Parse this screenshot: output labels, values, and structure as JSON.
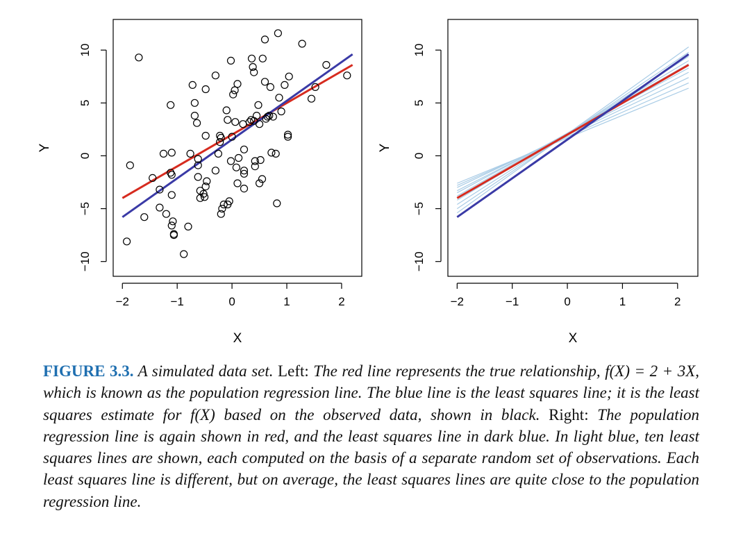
{
  "chart_data": [
    {
      "type": "scatter",
      "panel": "left",
      "xlabel": "X",
      "ylabel": "Y",
      "xlim": [
        -2.0,
        2.2
      ],
      "ylim": [
        -10.5,
        12.0
      ],
      "xticks": [
        -2,
        -1,
        0,
        1,
        2
      ],
      "yticks": [
        -10,
        -5,
        0,
        5,
        10
      ],
      "xtick_labels": [
        "−2",
        "−1",
        "0",
        "1",
        "2"
      ],
      "ytick_labels": [
        "−10",
        "−5",
        "0",
        "5",
        "10"
      ],
      "points": [
        [
          -1.7,
          9.3
        ],
        [
          -1.92,
          -8.1
        ],
        [
          -1.86,
          -0.9
        ],
        [
          -1.6,
          -5.8
        ],
        [
          -1.45,
          -2.1
        ],
        [
          -1.32,
          -3.2
        ],
        [
          -1.32,
          -4.9
        ],
        [
          -1.25,
          0.2
        ],
        [
          -1.2,
          -5.5
        ],
        [
          -1.12,
          4.8
        ],
        [
          -1.12,
          -1.6
        ],
        [
          -1.1,
          0.3
        ],
        [
          -1.1,
          -1.8
        ],
        [
          -1.1,
          -3.7
        ],
        [
          -1.08,
          -6.2
        ],
        [
          -1.1,
          -6.6
        ],
        [
          -1.06,
          -7.4
        ],
        [
          -1.06,
          -7.5
        ],
        [
          -0.88,
          -9.3
        ],
        [
          -0.8,
          -6.7
        ],
        [
          -0.76,
          0.2
        ],
        [
          -0.72,
          6.7
        ],
        [
          -0.68,
          5.0
        ],
        [
          -0.68,
          3.8
        ],
        [
          -0.64,
          3.1
        ],
        [
          -0.62,
          -0.3
        ],
        [
          -0.62,
          -0.9
        ],
        [
          -0.62,
          -2.0
        ],
        [
          -0.58,
          -3.3
        ],
        [
          -0.58,
          -4.0
        ],
        [
          -0.52,
          -3.6
        ],
        [
          -0.5,
          -3.9
        ],
        [
          -0.48,
          -2.9
        ],
        [
          -0.46,
          -2.4
        ],
        [
          -0.48,
          6.3
        ],
        [
          -0.48,
          1.9
        ],
        [
          -0.3,
          7.6
        ],
        [
          -0.3,
          -1.4
        ],
        [
          -0.25,
          0.2
        ],
        [
          -0.22,
          1.3
        ],
        [
          -0.2,
          1.7
        ],
        [
          -0.22,
          1.9
        ],
        [
          -0.2,
          -5.5
        ],
        [
          -0.18,
          -5.0
        ],
        [
          -0.15,
          -4.6
        ],
        [
          -0.08,
          -4.6
        ],
        [
          -0.05,
          -4.3
        ],
        [
          -0.08,
          3.4
        ],
        [
          -0.1,
          4.3
        ],
        [
          -0.02,
          9.0
        ],
        [
          -0.02,
          -0.5
        ],
        [
          0.0,
          1.8
        ],
        [
          0.02,
          5.8
        ],
        [
          0.05,
          6.2
        ],
        [
          0.1,
          6.8
        ],
        [
          0.06,
          3.2
        ],
        [
          0.08,
          -1.1
        ],
        [
          0.1,
          -2.6
        ],
        [
          0.12,
          -0.2
        ],
        [
          0.2,
          3.0
        ],
        [
          0.22,
          0.6
        ],
        [
          0.22,
          -1.4
        ],
        [
          0.22,
          -3.1
        ],
        [
          0.22,
          -1.7
        ],
        [
          0.32,
          3.2
        ],
        [
          0.35,
          3.4
        ],
        [
          0.36,
          9.2
        ],
        [
          0.38,
          8.4
        ],
        [
          0.4,
          7.9
        ],
        [
          0.4,
          3.3
        ],
        [
          0.42,
          -0.5
        ],
        [
          0.42,
          -1.0
        ],
        [
          0.45,
          3.8
        ],
        [
          0.48,
          4.8
        ],
        [
          0.5,
          3.0
        ],
        [
          0.5,
          -2.6
        ],
        [
          0.52,
          -0.4
        ],
        [
          0.55,
          -2.2
        ],
        [
          0.56,
          9.2
        ],
        [
          0.6,
          7.0
        ],
        [
          0.6,
          11.0
        ],
        [
          0.62,
          3.5
        ],
        [
          0.65,
          3.7
        ],
        [
          0.68,
          3.8
        ],
        [
          0.7,
          6.5
        ],
        [
          0.72,
          0.3
        ],
        [
          0.75,
          3.7
        ],
        [
          0.8,
          0.2
        ],
        [
          0.84,
          11.6
        ],
        [
          0.82,
          -4.5
        ],
        [
          0.86,
          5.5
        ],
        [
          0.9,
          4.2
        ],
        [
          0.96,
          6.7
        ],
        [
          1.02,
          2.0
        ],
        [
          1.02,
          1.8
        ],
        [
          1.04,
          7.5
        ],
        [
          1.28,
          10.6
        ],
        [
          1.45,
          5.4
        ],
        [
          1.52,
          6.5
        ],
        [
          1.72,
          8.6
        ],
        [
          2.1,
          7.6
        ]
      ],
      "series": [
        {
          "name": "population regression line",
          "color": "#d62b1f",
          "x": [
            -2.0,
            2.2
          ],
          "y": [
            -4.0,
            8.6
          ]
        },
        {
          "name": "least squares line",
          "color": "#3a3aa6",
          "x": [
            -2.0,
            2.2
          ],
          "y": [
            -5.8,
            9.6
          ]
        }
      ]
    },
    {
      "type": "line",
      "panel": "right",
      "xlabel": "X",
      "ylabel": "Y",
      "xlim": [
        -2.0,
        2.2
      ],
      "ylim": [
        -10.5,
        12.0
      ],
      "xticks": [
        -2,
        -1,
        0,
        1,
        2
      ],
      "yticks": [
        -10,
        -5,
        0,
        5,
        10
      ],
      "xtick_labels": [
        "−2",
        "−1",
        "0",
        "1",
        "2"
      ],
      "ytick_labels": [
        "−10",
        "−5",
        "0",
        "5",
        "10"
      ],
      "series": [
        {
          "name": "least squares line 1",
          "color": "#a9cce6",
          "x": [
            -2.0,
            2.2
          ],
          "y": [
            -2.6,
            6.4
          ]
        },
        {
          "name": "least squares line 2",
          "color": "#a9cce6",
          "x": [
            -2.0,
            2.2
          ],
          "y": [
            -2.8,
            6.9
          ]
        },
        {
          "name": "least squares line 3",
          "color": "#a9cce6",
          "x": [
            -2.0,
            2.2
          ],
          "y": [
            -3.0,
            7.4
          ]
        },
        {
          "name": "least squares line 4",
          "color": "#a9cce6",
          "x": [
            -2.0,
            2.2
          ],
          "y": [
            -3.3,
            7.9
          ]
        },
        {
          "name": "least squares line 5",
          "color": "#a9cce6",
          "x": [
            -2.0,
            2.2
          ],
          "y": [
            -3.5,
            8.3
          ]
        },
        {
          "name": "least squares line 6",
          "color": "#a9cce6",
          "x": [
            -2.0,
            2.2
          ],
          "y": [
            -3.8,
            8.7
          ]
        },
        {
          "name": "least squares line 7",
          "color": "#a9cce6",
          "x": [
            -2.0,
            2.2
          ],
          "y": [
            -4.2,
            9.0
          ]
        },
        {
          "name": "least squares line 8",
          "color": "#a9cce6",
          "x": [
            -2.0,
            2.2
          ],
          "y": [
            -4.6,
            9.4
          ]
        },
        {
          "name": "least squares line 9",
          "color": "#a9cce6",
          "x": [
            -2.0,
            2.2
          ],
          "y": [
            -5.0,
            9.8
          ]
        },
        {
          "name": "least squares line 10",
          "color": "#a9cce6",
          "x": [
            -2.0,
            2.2
          ],
          "y": [
            -5.4,
            10.3
          ]
        },
        {
          "name": "population regression line",
          "color": "#d62b1f",
          "x": [
            -2.0,
            2.2
          ],
          "y": [
            -4.0,
            8.6
          ]
        },
        {
          "name": "least squares line",
          "color": "#3a3aa6",
          "x": [
            -2.0,
            2.2
          ],
          "y": [
            -5.8,
            9.6
          ]
        }
      ]
    }
  ],
  "caption": {
    "figure_label": "FIGURE 3.3.",
    "seg1": " A simulated data set.",
    "seg2": " Left:",
    "seg3": " The red line represents the true relationship, ",
    "formula": "f(X) = 2 + 3X",
    "seg4": ", which is known as the population regression line. The blue line is the least squares line; it is the least squares estimate for ",
    "formula2": "f(X)",
    "seg5": " based on the observed data, shown in black.",
    "seg6": " Right:",
    "seg7": " The population regression line is again shown in red, and the least squares line in dark blue. In light blue, ten least squares lines are shown, each computed on the basis of a separate random set of observations. Each least squares line is different, but on average, the least squares lines are quite close to the population regression line."
  }
}
